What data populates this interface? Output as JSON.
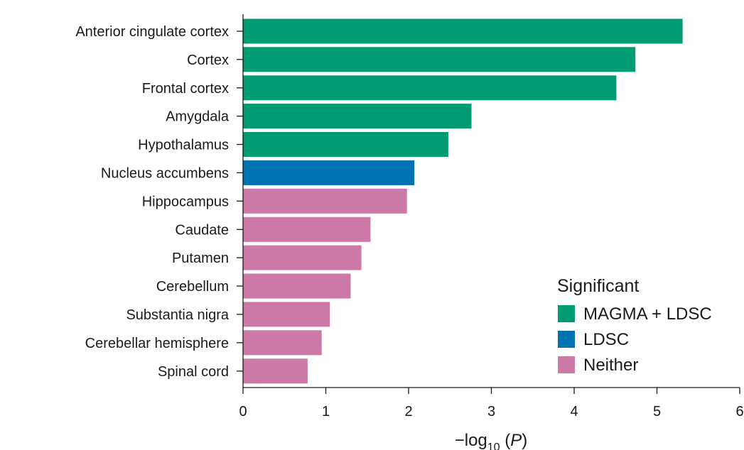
{
  "chart_data": {
    "type": "bar",
    "orientation": "horizontal",
    "categories": [
      "Anterior cingulate cortex",
      "Cortex",
      "Frontal cortex",
      "Amygdala",
      "Hypothalamus",
      "Nucleus accumbens",
      "Hippocampus",
      "Caudate",
      "Putamen",
      "Cerebellum",
      "Substantia nigra",
      "Cerebellar hemisphere",
      "Spinal cord"
    ],
    "values": [
      5.31,
      4.74,
      4.51,
      2.76,
      2.48,
      2.07,
      1.98,
      1.54,
      1.43,
      1.3,
      1.05,
      0.95,
      0.78
    ],
    "groups": [
      "MAGMA + LDSC",
      "MAGMA + LDSC",
      "MAGMA + LDSC",
      "MAGMA + LDSC",
      "MAGMA + LDSC",
      "LDSC",
      "Neither",
      "Neither",
      "Neither",
      "Neither",
      "Neither",
      "Neither",
      "Neither"
    ],
    "xlabel": {
      "prefix": "−log",
      "subscript": "10",
      "suffix": " (",
      "italic": "P",
      "close": ")"
    },
    "xlim": [
      0,
      6
    ],
    "xticks": [
      "0",
      "1",
      "2",
      "3",
      "4",
      "5",
      "6"
    ],
    "grid": false,
    "legend": {
      "title": "Significant",
      "placement": "bottom-right",
      "entries": [
        {
          "label": "MAGMA + LDSC",
          "color": "#009b72"
        },
        {
          "label": "LDSC",
          "color": "#0072b2"
        },
        {
          "label": "Neither",
          "color": "#cc79a7"
        }
      ]
    }
  }
}
